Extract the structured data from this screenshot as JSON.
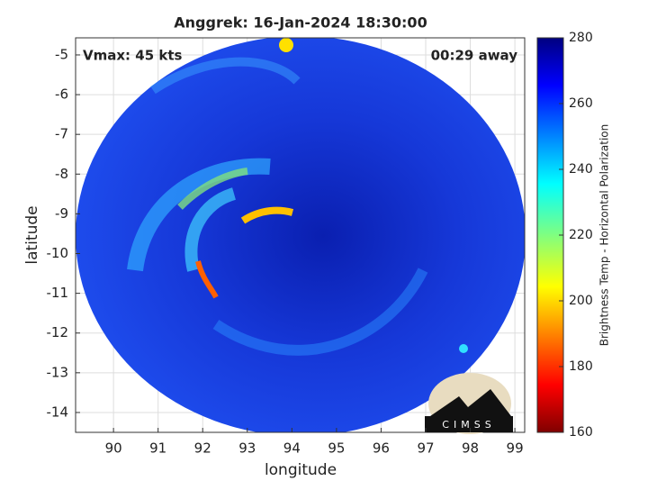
{
  "chart_data": {
    "type": "image",
    "title": "Anggrek: 16-Jan-2024 18:30:00",
    "annotations": [
      "Vmax: 45 kts",
      "00:29 away"
    ],
    "x_label": "longitude",
    "y_label": "latitude",
    "xlim": [
      89.15,
      99.22
    ],
    "xticks": [
      90,
      91,
      92,
      93,
      94,
      95,
      96,
      97,
      98,
      99
    ],
    "ylim": [
      -14.5,
      -4.57
    ],
    "yticks": [
      -14,
      -13,
      -12,
      -11,
      -10,
      -9,
      -8,
      -7,
      -6,
      -5
    ],
    "grid": true,
    "colorbar": {
      "label": "Brightness Temp - Horizontal Polarization",
      "clim": [
        160,
        280
      ],
      "ticks": [
        160,
        180,
        200,
        220,
        240,
        260,
        280
      ]
    },
    "logo_text": "CIMSS"
  }
}
